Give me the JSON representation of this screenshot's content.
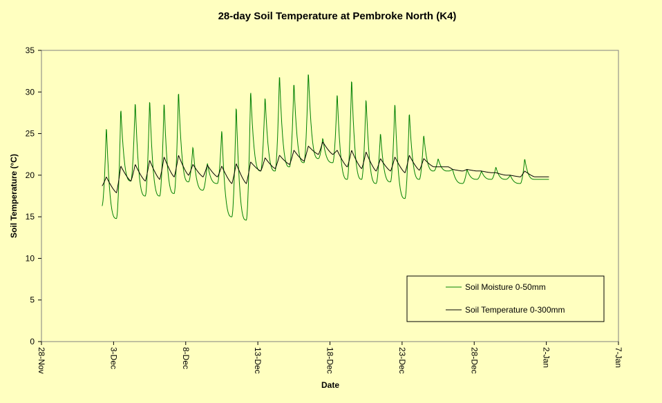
{
  "chart_data": {
    "type": "line",
    "title": "28-day Soil Temperature at Pembroke North (K4)",
    "xlabel": "Date",
    "ylabel": "Soil Temperature (°C)",
    "ylim": [
      0,
      35
    ],
    "yticks": [
      0,
      5,
      10,
      15,
      20,
      25,
      30,
      35
    ],
    "x_start_label": "28-Nov",
    "xticks": [
      "28-Nov",
      "3-Dec",
      "8-Dec",
      "13-Dec",
      "18-Dec",
      "23-Dec",
      "28-Dec",
      "2-Jan",
      "7-Jan"
    ],
    "grid": false,
    "legend_position": "bottom-right",
    "series": [
      {
        "name": "Soil Moisture 0-50mm",
        "color": "#008000",
        "x": [
          "2-Dec",
          "3-Dec",
          "4-Dec",
          "5-Dec",
          "6-Dec",
          "7-Dec",
          "8-Dec",
          "9-Dec",
          "10-Dec",
          "11-Dec",
          "12-Dec",
          "13-Dec",
          "14-Dec",
          "15-Dec",
          "16-Dec",
          "17-Dec",
          "18-Dec",
          "19-Dec",
          "20-Dec",
          "21-Dec",
          "22-Dec",
          "23-Dec",
          "24-Dec",
          "25-Dec",
          "26-Dec",
          "27-Dec",
          "28-Dec",
          "29-Dec",
          "30-Dec",
          "31-Dec",
          "1-Jan"
        ],
        "min": [
          16.3,
          14.8,
          19.3,
          17.5,
          17.5,
          17.8,
          19.2,
          18.2,
          19.0,
          15.0,
          14.6,
          20.5,
          20.5,
          21.0,
          21.5,
          22.0,
          21.5,
          19.5,
          19.5,
          19.0,
          19.2,
          17.2,
          19.5,
          20.5,
          20.5,
          19.0,
          19.5,
          19.5,
          19.5,
          19.0,
          19.5
        ],
        "max": [
          null,
          26.0,
          28.2,
          29.0,
          29.3,
          29.0,
          30.3,
          23.5,
          21.5,
          25.6,
          28.6,
          30.4,
          29.6,
          32.3,
          31.3,
          32.6,
          24.5,
          30.0,
          31.8,
          29.4,
          25.2,
          28.9,
          27.7,
          24.9,
          22.0,
          20.7,
          20.7,
          20.5,
          21.0,
          20.0,
          22.0
        ]
      },
      {
        "name": "Soil Temperature 0-300mm",
        "color": "#000000",
        "x": [
          "2-Dec",
          "3-Dec",
          "4-Dec",
          "5-Dec",
          "6-Dec",
          "7-Dec",
          "8-Dec",
          "9-Dec",
          "10-Dec",
          "11-Dec",
          "12-Dec",
          "13-Dec",
          "14-Dec",
          "15-Dec",
          "16-Dec",
          "17-Dec",
          "18-Dec",
          "19-Dec",
          "20-Dec",
          "21-Dec",
          "22-Dec",
          "23-Dec",
          "24-Dec",
          "25-Dec",
          "26-Dec",
          "27-Dec",
          "28-Dec",
          "29-Dec",
          "30-Dec",
          "31-Dec",
          "1-Jan"
        ],
        "min": [
          18.7,
          17.9,
          19.3,
          19.3,
          19.5,
          19.8,
          20.0,
          19.8,
          19.8,
          19.0,
          19.0,
          20.5,
          20.8,
          21.3,
          21.7,
          22.5,
          22.5,
          21.0,
          20.8,
          20.5,
          20.5,
          20.3,
          20.6,
          21.0,
          21.0,
          20.5,
          20.5,
          20.3,
          20.0,
          19.8,
          19.8
        ],
        "max": [
          null,
          19.8,
          21.1,
          21.3,
          21.8,
          22.2,
          22.4,
          21.3,
          21.2,
          21.1,
          21.4,
          21.6,
          22.1,
          22.4,
          23.0,
          23.5,
          24.0,
          23.0,
          23.0,
          22.8,
          22.0,
          22.2,
          22.4,
          22.0,
          21.0,
          20.7,
          20.7,
          20.5,
          20.3,
          20.0,
          20.5
        ]
      }
    ]
  }
}
